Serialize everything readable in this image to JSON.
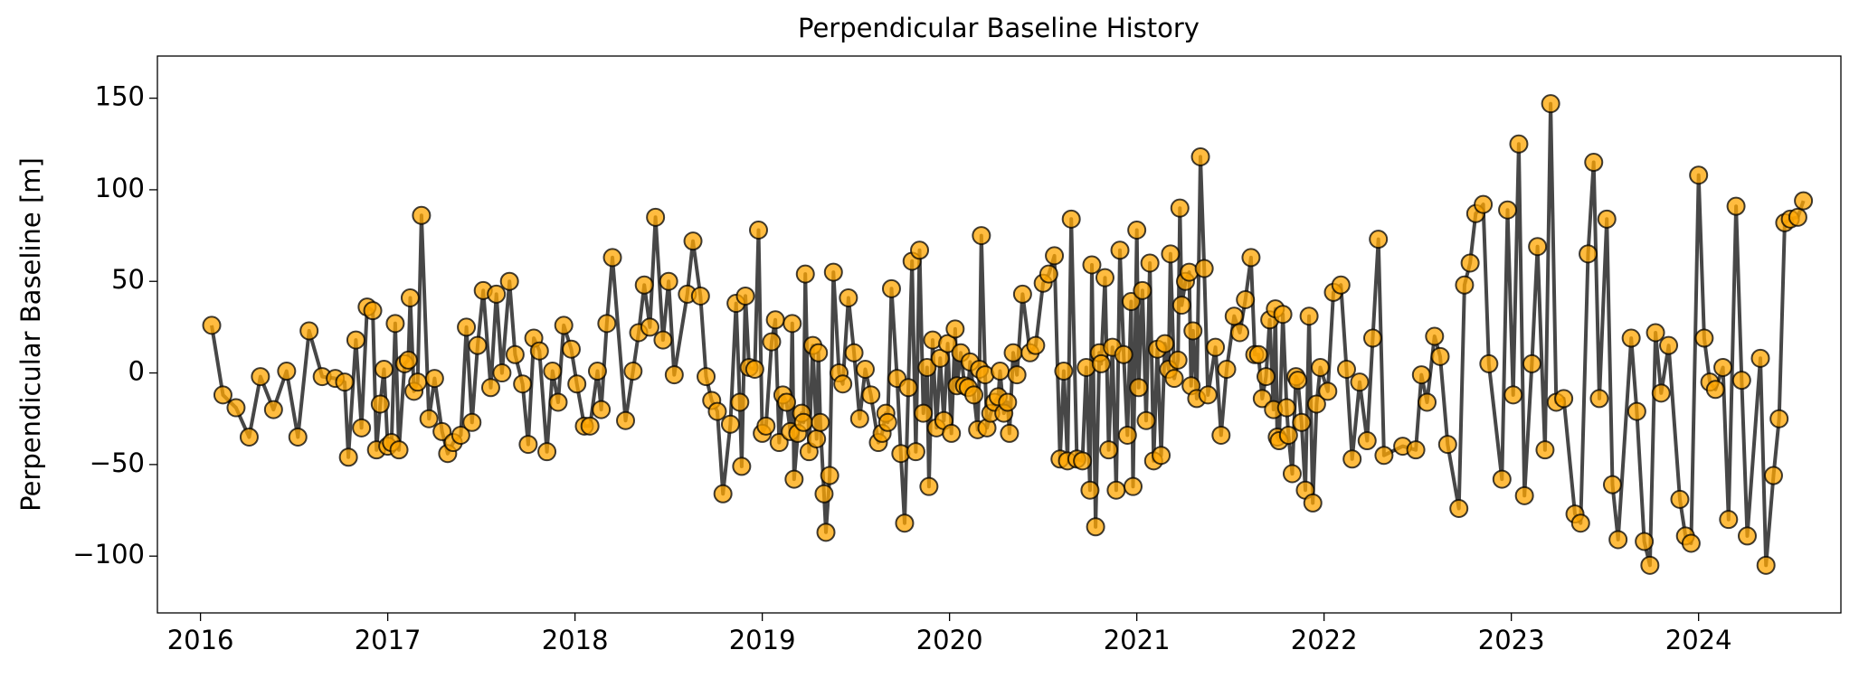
{
  "chart_data": {
    "type": "line",
    "title": "Perpendicular Baseline History",
    "ylabel": "Perpendicular Baseline [m]",
    "xlim": [
      2015.77,
      2024.76
    ],
    "xticks": [
      2016,
      2017,
      2018,
      2019,
      2020,
      2021,
      2022,
      2023,
      2024
    ],
    "ylim": [
      -131,
      173
    ],
    "yticks": [
      {
        "value": -100,
        "label": "−100"
      },
      {
        "value": -50,
        "label": "−50"
      },
      0,
      50,
      100,
      150
    ],
    "grid": false,
    "line_color": "#333333",
    "marker_color": "#ffa500",
    "marker_edge_color": "#000000",
    "x": [
      2016.06,
      2016.12,
      2016.19,
      2016.26,
      2016.32,
      2016.39,
      2016.46,
      2016.52,
      2016.58,
      2016.65,
      2016.72,
      2016.77,
      2016.79,
      2016.83,
      2016.86,
      2016.89,
      2016.92,
      2016.94,
      2016.96,
      2016.98,
      2017.0,
      2017.02,
      2017.04,
      2017.06,
      2017.09,
      2017.11,
      2017.12,
      2017.14,
      2017.16,
      2017.18,
      2017.22,
      2017.25,
      2017.29,
      2017.32,
      2017.35,
      2017.39,
      2017.42,
      2017.45,
      2017.48,
      2017.51,
      2017.55,
      2017.58,
      2017.61,
      2017.65,
      2017.68,
      2017.72,
      2017.75,
      2017.78,
      2017.81,
      2017.85,
      2017.88,
      2017.91,
      2017.94,
      2017.98,
      2018.01,
      2018.05,
      2018.08,
      2018.12,
      2018.14,
      2018.17,
      2018.2,
      2018.27,
      2018.31,
      2018.34,
      2018.37,
      2018.4,
      2018.43,
      2018.47,
      2018.5,
      2018.53,
      2018.6,
      2018.63,
      2018.67,
      2018.7,
      2018.73,
      2018.76,
      2018.79,
      2018.83,
      2018.86,
      2018.88,
      2018.89,
      2018.91,
      2018.93,
      2018.96,
      2018.98,
      2019.0,
      2019.02,
      2019.05,
      2019.07,
      2019.09,
      2019.11,
      2019.13,
      2019.15,
      2019.16,
      2019.17,
      2019.19,
      2019.21,
      2019.22,
      2019.23,
      2019.25,
      2019.27,
      2019.29,
      2019.3,
      2019.31,
      2019.33,
      2019.34,
      2019.36,
      2019.38,
      2019.41,
      2019.43,
      2019.46,
      2019.49,
      2019.52,
      2019.55,
      2019.58,
      2019.62,
      2019.64,
      2019.66,
      2019.67,
      2019.69,
      2019.72,
      2019.74,
      2019.76,
      2019.78,
      2019.8,
      2019.82,
      2019.84,
      2019.86,
      2019.88,
      2019.89,
      2019.91,
      2019.93,
      2019.95,
      2019.97,
      2019.99,
      2020.01,
      2020.03,
      2020.04,
      2020.06,
      2020.08,
      2020.1,
      2020.11,
      2020.13,
      2020.15,
      2020.16,
      2020.17,
      2020.19,
      2020.2,
      2020.22,
      2020.24,
      2020.26,
      2020.27,
      2020.29,
      2020.31,
      2020.32,
      2020.34,
      2020.36,
      2020.39,
      2020.43,
      2020.46,
      2020.5,
      2020.53,
      2020.56,
      2020.59,
      2020.61,
      2020.63,
      2020.65,
      2020.68,
      2020.71,
      2020.73,
      2020.75,
      2020.76,
      2020.78,
      2020.8,
      2020.81,
      2020.83,
      2020.85,
      2020.87,
      2020.89,
      2020.91,
      2020.93,
      2020.95,
      2020.97,
      2020.98,
      2021.0,
      2021.01,
      2021.03,
      2021.05,
      2021.07,
      2021.09,
      2021.11,
      2021.13,
      2021.15,
      2021.17,
      2021.18,
      2021.2,
      2021.22,
      2021.23,
      2021.24,
      2021.26,
      2021.28,
      2021.29,
      2021.3,
      2021.32,
      2021.34,
      2021.36,
      2021.38,
      2021.42,
      2021.45,
      2021.48,
      2021.52,
      2021.55,
      2021.58,
      2021.61,
      2021.63,
      2021.65,
      2021.67,
      2021.69,
      2021.71,
      2021.73,
      2021.74,
      2021.75,
      2021.76,
      2021.78,
      2021.8,
      2021.81,
      2021.83,
      2021.85,
      2021.86,
      2021.88,
      2021.9,
      2021.92,
      2021.94,
      2021.96,
      2021.98,
      2022.02,
      2022.05,
      2022.09,
      2022.12,
      2022.15,
      2022.19,
      2022.23,
      2022.26,
      2022.29,
      2022.32,
      2022.42,
      2022.49,
      2022.52,
      2022.55,
      2022.59,
      2022.62,
      2022.66,
      2022.72,
      2022.75,
      2022.78,
      2022.81,
      2022.85,
      2022.88,
      2022.95,
      2022.98,
      2023.01,
      2023.04,
      2023.07,
      2023.11,
      2023.14,
      2023.18,
      2023.21,
      2023.24,
      2023.28,
      2023.34,
      2023.37,
      2023.41,
      2023.44,
      2023.47,
      2023.51,
      2023.54,
      2023.57,
      2023.64,
      2023.67,
      2023.71,
      2023.74,
      2023.77,
      2023.8,
      2023.84,
      2023.9,
      2023.93,
      2023.96,
      2024.0,
      2024.03,
      2024.06,
      2024.09,
      2024.13,
      2024.16,
      2024.2,
      2024.23,
      2024.26,
      2024.33,
      2024.36,
      2024.4,
      2024.43,
      2024.46,
      2024.49,
      2024.53,
      2024.56
    ],
    "values": [
      26,
      -12,
      -19,
      -35,
      -2,
      -20,
      1,
      -35,
      23,
      -2,
      -3,
      -5,
      -46,
      18,
      -30,
      36,
      34,
      -42,
      -17,
      2,
      -40,
      -38,
      27,
      -42,
      5,
      7,
      41,
      -10,
      -5,
      86,
      -25,
      -3,
      -32,
      -44,
      -38,
      -34,
      25,
      -27,
      15,
      45,
      -8,
      43,
      0,
      50,
      10,
      -6,
      -39,
      19,
      12,
      -43,
      1,
      -16,
      26,
      13,
      -6,
      -29,
      -29,
      1,
      -20,
      27,
      63,
      -26,
      1,
      22,
      48,
      25,
      85,
      18,
      50,
      -1,
      43,
      72,
      42,
      -2,
      -15,
      -21,
      -66,
      -28,
      38,
      -16,
      -51,
      42,
      3,
      2,
      78,
      -33,
      -29,
      17,
      29,
      -38,
      -12,
      -16,
      -32,
      27,
      -58,
      -33,
      -22,
      -27,
      54,
      -43,
      15,
      -36,
      11,
      -27,
      -66,
      -87,
      -56,
      55,
      0,
      -6,
      41,
      11,
      -25,
      2,
      -12,
      -38,
      -33,
      -22,
      -27,
      46,
      -3,
      -44,
      -82,
      -8,
      61,
      -43,
      67,
      -22,
      3,
      -62,
      18,
      -30,
      8,
      -26,
      16,
      -33,
      24,
      -7,
      11,
      -7,
      -8,
      6,
      -12,
      -31,
      2,
      75,
      -1,
      -30,
      -22,
      -16,
      -13,
      1,
      -22,
      -16,
      -33,
      11,
      -1,
      43,
      11,
      15,
      49,
      54,
      64,
      -47,
      1,
      -48,
      84,
      -47,
      -48,
      3,
      -64,
      59,
      -84,
      11,
      5,
      52,
      -42,
      14,
      -64,
      67,
      10,
      -34,
      39,
      -62,
      78,
      -8,
      45,
      -26,
      60,
      -48,
      13,
      -45,
      16,
      2,
      65,
      -3,
      7,
      90,
      37,
      50,
      55,
      -7,
      23,
      -14,
      118,
      57,
      -12,
      14,
      -34,
      2,
      31,
      22,
      40,
      63,
      10,
      10,
      -14,
      -2,
      29,
      -20,
      35,
      -35,
      -37,
      32,
      -19,
      -34,
      -55,
      -2,
      -4,
      -27,
      -64,
      31,
      -71,
      -17,
      3,
      -10,
      44,
      48,
      2,
      -47,
      -5,
      -37,
      19,
      73,
      -45,
      -40,
      -42,
      -1,
      -16,
      20,
      9,
      -39,
      -74,
      48,
      60,
      87,
      92,
      5,
      -58,
      89,
      -12,
      125,
      -67,
      5,
      69,
      -42,
      147,
      -16,
      -14,
      -77,
      -82,
      65,
      115,
      -14,
      84,
      -61,
      -91,
      19,
      -21,
      -92,
      -105,
      22,
      -11,
      15,
      -69,
      -89,
      -93,
      108,
      19,
      -5,
      -9,
      3,
      -80,
      91,
      -4,
      -89,
      8,
      -105,
      -56,
      -25,
      82,
      84,
      85,
      94
    ]
  }
}
